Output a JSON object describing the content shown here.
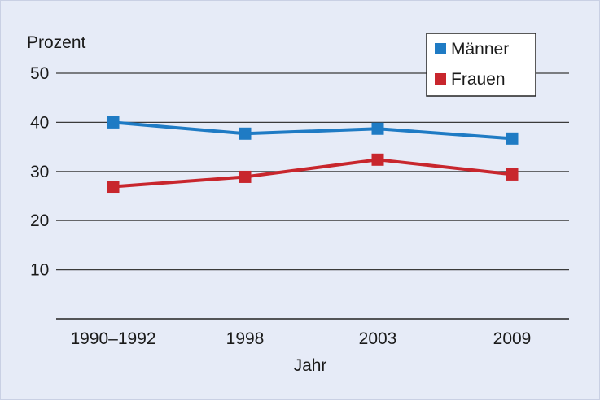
{
  "chart_data": {
    "type": "line",
    "ylabel": "Prozent",
    "xlabel": "Jahr",
    "categories": [
      "1990–1992",
      "1998",
      "2003",
      "2009"
    ],
    "yticks": [
      10,
      20,
      30,
      40,
      50
    ],
    "ylim": [
      0,
      50
    ],
    "grid": true,
    "legend_position": "top-right",
    "series": [
      {
        "name": "Männer",
        "color": "#1f7bc4",
        "values": [
          40.0,
          37.7,
          38.7,
          36.7
        ]
      },
      {
        "name": "Frauen",
        "color": "#c8262d",
        "values": [
          26.9,
          28.9,
          32.4,
          29.4
        ]
      }
    ]
  }
}
